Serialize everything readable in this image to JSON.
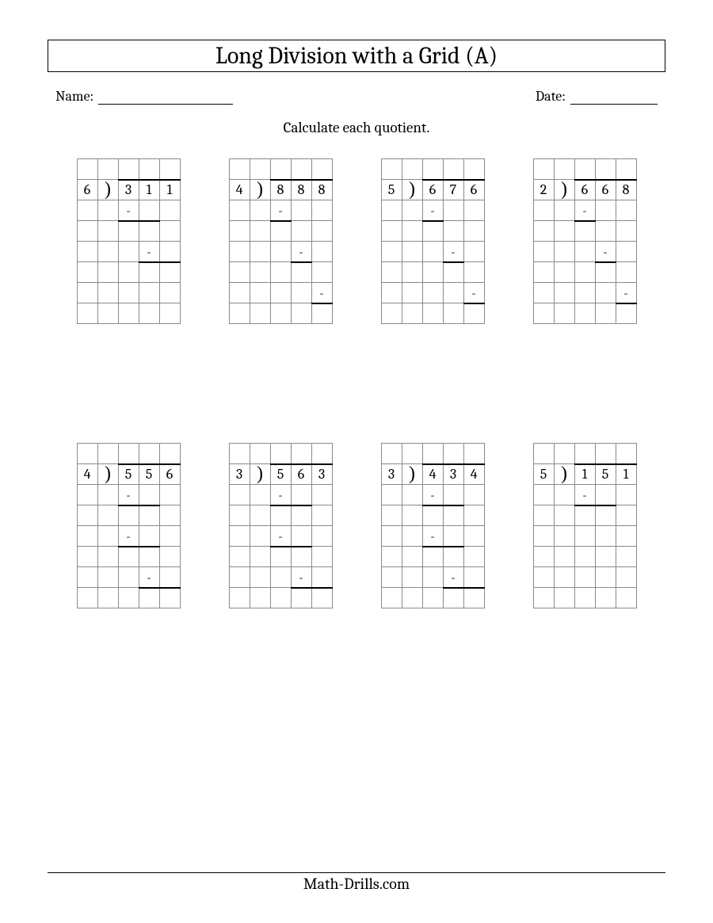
{
  "title": "Long Division with a Grid (A)",
  "name_label": "Name:",
  "date_label": "Date:",
  "name_line_width": 170,
  "date_line_width": 110,
  "subtitle": "Calculate each quotient.",
  "footer": "Math-Drills.com",
  "minus": "-",
  "bracket": ")",
  "cell_size": 26,
  "colors": {
    "text": "#000000",
    "grid_border": "#8a8a8a",
    "thick_line": "#000000",
    "background": "#ffffff"
  },
  "fonts": {
    "title_size": 30,
    "body_size": 18,
    "digit_size": 18
  },
  "layout": {
    "cols": 4,
    "rows": 2,
    "row_gap": 150,
    "col_gap": 28
  },
  "problems": [
    {
      "cells": {
        "r1c0": "6",
        "r1c1": ")",
        "r1c2": "3",
        "r1c3": "1",
        "r1c4": "1",
        "r2c2": "-",
        "r4c3": "-"
      },
      "bracket_at": "r1c1",
      "top_lines": [
        "r1c2",
        "r1c3",
        "r1c4"
      ],
      "bot_lines": [
        "r2c2",
        "r2c3",
        "r4c3",
        "r4c4"
      ],
      "rows": 8,
      "cols": 5
    },
    {
      "cells": {
        "r1c0": "4",
        "r1c1": ")",
        "r1c2": "8",
        "r1c3": "8",
        "r1c4": "8",
        "r2c2": "-",
        "r4c3": "-",
        "r6c4": "-"
      },
      "bracket_at": "r1c1",
      "top_lines": [
        "r1c2",
        "r1c3",
        "r1c4"
      ],
      "bot_lines": [
        "r2c2",
        "r4c3",
        "r6c4"
      ],
      "rows": 8,
      "cols": 5
    },
    {
      "cells": {
        "r1c0": "5",
        "r1c1": ")",
        "r1c2": "6",
        "r1c3": "7",
        "r1c4": "6",
        "r2c2": "-",
        "r4c3": "-",
        "r6c4": "-"
      },
      "bracket_at": "r1c1",
      "top_lines": [
        "r1c2",
        "r1c3",
        "r1c4"
      ],
      "bot_lines": [
        "r2c2",
        "r4c3",
        "r6c4"
      ],
      "rows": 8,
      "cols": 5
    },
    {
      "cells": {
        "r1c0": "2",
        "r1c1": ")",
        "r1c2": "6",
        "r1c3": "6",
        "r1c4": "8",
        "r2c2": "-",
        "r4c3": "-",
        "r6c4": "-"
      },
      "bracket_at": "r1c1",
      "top_lines": [
        "r1c2",
        "r1c3",
        "r1c4"
      ],
      "bot_lines": [
        "r2c2",
        "r4c3",
        "r6c4"
      ],
      "rows": 8,
      "cols": 5
    },
    {
      "cells": {
        "r1c0": "4",
        "r1c1": ")",
        "r1c2": "5",
        "r1c3": "5",
        "r1c4": "6",
        "r2c2": "-",
        "r4c2": "-",
        "r6c3": "-"
      },
      "bracket_at": "r1c1",
      "top_lines": [
        "r1c2",
        "r1c3",
        "r1c4"
      ],
      "bot_lines": [
        "r2c2",
        "r2c3",
        "r4c2",
        "r4c3",
        "r6c3",
        "r6c4"
      ],
      "rows": 8,
      "cols": 5
    },
    {
      "cells": {
        "r1c0": "3",
        "r1c1": ")",
        "r1c2": "5",
        "r1c3": "6",
        "r1c4": "3",
        "r2c2": "-",
        "r4c2": "-",
        "r6c3": "-"
      },
      "bracket_at": "r1c1",
      "top_lines": [
        "r1c2",
        "r1c3",
        "r1c4"
      ],
      "bot_lines": [
        "r2c2",
        "r2c3",
        "r4c2",
        "r4c3",
        "r6c3",
        "r6c4"
      ],
      "rows": 8,
      "cols": 5
    },
    {
      "cells": {
        "r1c0": "3",
        "r1c1": ")",
        "r1c2": "4",
        "r1c3": "3",
        "r1c4": "4",
        "r2c2": "-",
        "r4c2": "-",
        "r6c3": "-"
      },
      "bracket_at": "r1c1",
      "top_lines": [
        "r1c2",
        "r1c3",
        "r1c4"
      ],
      "bot_lines": [
        "r2c2",
        "r2c3",
        "r4c2",
        "r4c3",
        "r6c3",
        "r6c4"
      ],
      "rows": 8,
      "cols": 5
    },
    {
      "cells": {
        "r1c0": "5",
        "r1c1": ")",
        "r1c2": "1",
        "r1c3": "5",
        "r1c4": "1",
        "r2c2": "-"
      },
      "bracket_at": "r1c1",
      "top_lines": [
        "r1c2",
        "r1c3",
        "r1c4"
      ],
      "bot_lines": [
        "r2c2",
        "r2c3"
      ],
      "rows": 8,
      "cols": 5
    }
  ]
}
